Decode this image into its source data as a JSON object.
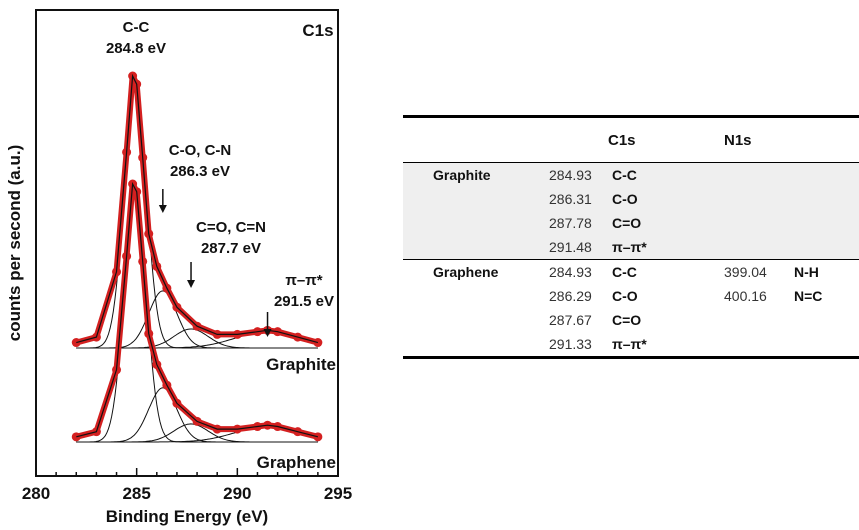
{
  "chart_data": {
    "type": "line",
    "panel_label": "C1s",
    "xlabel": "Binding Energy (eV)",
    "ylabel": "counts per second (a.u.)",
    "xlim": [
      280,
      295
    ],
    "x_ticks": [
      "280",
      "285",
      "290",
      "295"
    ],
    "grid": false,
    "legend": "none",
    "series": [
      {
        "name": "Graphite",
        "x": [
          282,
          283,
          284,
          284.5,
          284.8,
          285,
          285.3,
          285.6,
          286,
          286.5,
          287,
          288,
          289,
          290,
          291,
          291.5,
          292,
          293,
          294
        ],
        "y": [
          0.02,
          0.04,
          0.28,
          0.72,
          1.0,
          0.97,
          0.7,
          0.42,
          0.3,
          0.22,
          0.15,
          0.08,
          0.05,
          0.05,
          0.06,
          0.065,
          0.06,
          0.04,
          0.02
        ]
      },
      {
        "name": "Graphene",
        "x": [
          282,
          283,
          284,
          284.5,
          284.8,
          285,
          285.3,
          285.6,
          286,
          286.5,
          287,
          288,
          289,
          290,
          291,
          291.5,
          292,
          293,
          294
        ],
        "y": [
          0.02,
          0.04,
          0.28,
          0.72,
          1.0,
          0.97,
          0.7,
          0.42,
          0.3,
          0.22,
          0.15,
          0.08,
          0.05,
          0.05,
          0.06,
          0.065,
          0.06,
          0.04,
          0.02
        ]
      }
    ],
    "annotations": [
      {
        "text": [
          "C-C",
          "284.8 eV"
        ],
        "x": 284.8
      },
      {
        "text": [
          "C-O, C-N",
          "286.3 eV"
        ],
        "x": 286.3
      },
      {
        "text": [
          "C=O, C=N",
          "287.7 eV"
        ],
        "x": 287.7
      },
      {
        "text": [
          "π–π*",
          "291.5 eV"
        ],
        "x": 291.5
      }
    ],
    "colors": {
      "data": "#d42020",
      "fit": "#111111"
    }
  },
  "table": {
    "headers": {
      "c1s": "C1s",
      "n1s": "N1s"
    },
    "groups": [
      {
        "material": "Graphite",
        "rows": [
          {
            "c1s_value": "284.93",
            "c1s_assign": "C-C",
            "n1s_value": "",
            "n1s_assign": ""
          },
          {
            "c1s_value": "286.31",
            "c1s_assign": "C-O",
            "n1s_value": "",
            "n1s_assign": ""
          },
          {
            "c1s_value": "287.78",
            "c1s_assign": "C=O",
            "n1s_value": "",
            "n1s_assign": ""
          },
          {
            "c1s_value": "291.48",
            "c1s_assign": "π–π*",
            "n1s_value": "",
            "n1s_assign": ""
          }
        ]
      },
      {
        "material": "Graphene",
        "rows": [
          {
            "c1s_value": "284.93",
            "c1s_assign": "C-C",
            "n1s_value": "399.04",
            "n1s_assign": "N-H"
          },
          {
            "c1s_value": "286.29",
            "c1s_assign": "C-O",
            "n1s_value": "400.16",
            "n1s_assign": "N=C"
          },
          {
            "c1s_value": "287.67",
            "c1s_assign": "C=O",
            "n1s_value": "",
            "n1s_assign": ""
          },
          {
            "c1s_value": "291.33",
            "c1s_assign": "π–π*",
            "n1s_value": "",
            "n1s_assign": ""
          }
        ]
      }
    ]
  }
}
